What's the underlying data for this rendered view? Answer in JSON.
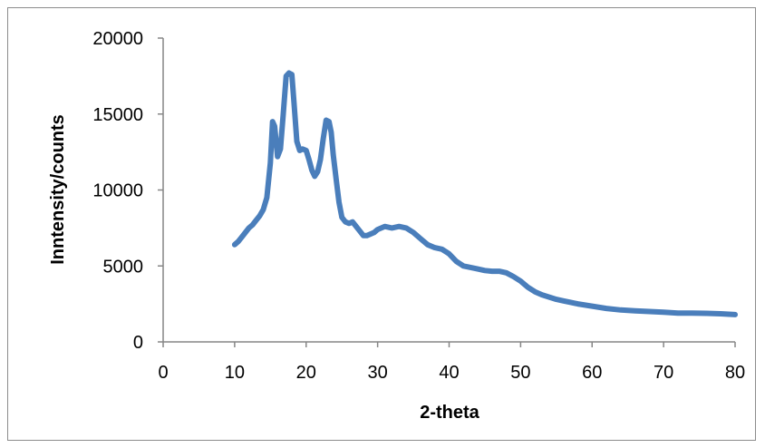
{
  "chart_data": {
    "type": "line",
    "title": "",
    "xlabel": "2-theta",
    "ylabel": "Inntensity/counts",
    "xlim": [
      0,
      80
    ],
    "ylim": [
      0,
      20000
    ],
    "xticks": [
      0,
      10,
      20,
      30,
      40,
      50,
      60,
      70,
      80
    ],
    "yticks": [
      0,
      5000,
      10000,
      15000,
      20000
    ],
    "grid": false,
    "legend": "none",
    "series": [
      {
        "color": "#4a7ebb",
        "x": [
          10,
          10.5,
          11,
          11.5,
          12,
          12.5,
          13,
          13.5,
          14,
          14.5,
          15,
          15.3,
          15.6,
          16,
          16.4,
          16.8,
          17.2,
          17.6,
          18,
          18.3,
          18.7,
          19.1,
          19.5,
          20,
          20.4,
          20.8,
          21.2,
          21.6,
          22,
          22.4,
          22.8,
          23.2,
          23.5,
          23.8,
          24.2,
          24.6,
          25,
          25.5,
          26,
          26.5,
          27,
          27.5,
          28,
          28.5,
          29,
          29.5,
          30,
          31,
          32,
          33,
          34,
          35,
          36,
          37,
          38,
          39,
          40,
          41,
          42,
          43,
          44,
          45,
          46,
          47,
          48,
          49,
          50,
          51,
          52,
          53,
          54,
          55,
          56,
          57,
          58,
          60,
          62,
          64,
          66,
          68,
          70,
          72,
          74,
          76,
          78,
          80
        ],
        "y": [
          6400,
          6600,
          6900,
          7200,
          7500,
          7700,
          8000,
          8300,
          8700,
          9500,
          11800,
          14500,
          14200,
          12200,
          12700,
          15000,
          17500,
          17700,
          17600,
          15800,
          13200,
          12600,
          12700,
          12600,
          12000,
          11300,
          10900,
          11200,
          12000,
          13400,
          14600,
          14500,
          13800,
          12300,
          10700,
          9200,
          8200,
          7900,
          7800,
          7900,
          7600,
          7300,
          7000,
          7000,
          7100,
          7200,
          7400,
          7600,
          7500,
          7600,
          7500,
          7200,
          6800,
          6400,
          6200,
          6100,
          5800,
          5300,
          5000,
          4900,
          4800,
          4700,
          4650,
          4650,
          4550,
          4300,
          4000,
          3600,
          3300,
          3100,
          2950,
          2800,
          2700,
          2600,
          2500,
          2350,
          2200,
          2100,
          2050,
          2000,
          1950,
          1900,
          1900,
          1880,
          1850,
          1800
        ]
      }
    ]
  }
}
